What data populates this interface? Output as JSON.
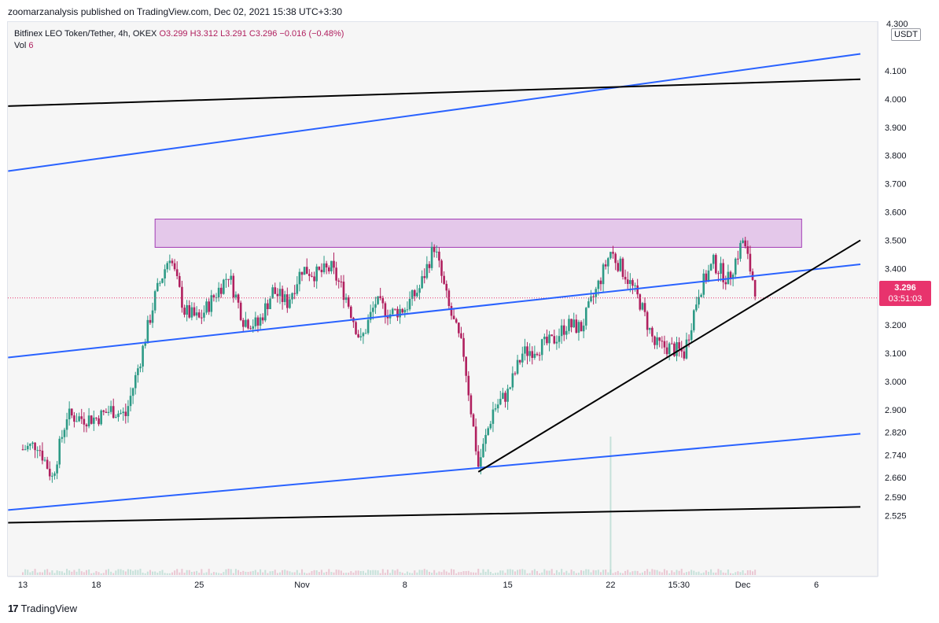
{
  "header": {
    "publisher_line": "zoomarzanalysis published on TradingView.com, Dec 02, 2021 15:38 UTC+3:30"
  },
  "legend": {
    "symbol": "Bitfinex LEO Token/Tether, 4h, OKEX",
    "open": "O3.299",
    "high": "H3.312",
    "low": "L3.291",
    "close": "C3.296",
    "change": "−0.016 (−0.48%)",
    "vol_label": "Vol",
    "vol_value": "6"
  },
  "price_axis": {
    "currency": "USDT",
    "top_label": "4.300"
  },
  "last_price": {
    "price": "3.296",
    "countdown": "03:51:03"
  },
  "footer": {
    "brand": "TradingView",
    "logo": "17"
  },
  "colors": {
    "up": "#2d9a86",
    "down": "#b0205f",
    "blue_line": "#2962ff",
    "black_line": "#000000",
    "zone_fill": "#e4c8ea",
    "zone_stroke": "#a23cb5",
    "price_tag": "#e8336d"
  },
  "chart_data": {
    "type": "candlestick",
    "title": "Bitfinex LEO Token/Tether, 4h, OKEX",
    "ylabel": "USDT",
    "y_ticks": [
      "4.100",
      "4.000",
      "3.900",
      "3.800",
      "3.700",
      "3.600",
      "3.500",
      "3.400",
      "3.300",
      "3.200",
      "3.100",
      "3.000",
      "2.900",
      "2.820",
      "2.740",
      "2.660",
      "2.590",
      "2.525"
    ],
    "x_ticks": [
      "13",
      "18",
      "25",
      "Nov",
      "8",
      "15",
      "22",
      "15:30",
      "Dec",
      "6"
    ],
    "x_dates": [
      "2021-10-13",
      "2021-10-18",
      "2021-10-25",
      "2021-11-01",
      "2021-11-08",
      "2021-11-15",
      "2021-11-22",
      "2021-11-26 15:30",
      "2021-12-01",
      "2021-12-06"
    ],
    "ylim": [
      2.49,
      4.31
    ],
    "close_path": [
      [
        "2021-10-13",
        2.76
      ],
      [
        "2021-10-14",
        2.78
      ],
      [
        "2021-10-15",
        2.66
      ],
      [
        "2021-10-16",
        2.88
      ],
      [
        "2021-10-17",
        2.87
      ],
      [
        "2021-10-18",
        2.87
      ],
      [
        "2021-10-19",
        2.9
      ],
      [
        "2021-10-20",
        2.88
      ],
      [
        "2021-10-21",
        3.08
      ],
      [
        "2021-10-22",
        3.3
      ],
      [
        "2021-10-23",
        3.45
      ],
      [
        "2021-10-24",
        3.25
      ],
      [
        "2021-10-25",
        3.22
      ],
      [
        "2021-10-26",
        3.3
      ],
      [
        "2021-10-27",
        3.38
      ],
      [
        "2021-10-28",
        3.22
      ],
      [
        "2021-10-29",
        3.2
      ],
      [
        "2021-10-30",
        3.32
      ],
      [
        "2021-10-31",
        3.28
      ],
      [
        "2021-11-01",
        3.4
      ],
      [
        "2021-11-02",
        3.38
      ],
      [
        "2021-11-03",
        3.4
      ],
      [
        "2021-11-04",
        3.3
      ],
      [
        "2021-11-05",
        3.14
      ],
      [
        "2021-11-06",
        3.28
      ],
      [
        "2021-11-07",
        3.24
      ],
      [
        "2021-11-08",
        3.26
      ],
      [
        "2021-11-09",
        3.33
      ],
      [
        "2021-11-10",
        3.48
      ],
      [
        "2021-11-11",
        3.26
      ],
      [
        "2021-11-12",
        3.1
      ],
      [
        "2021-11-13",
        2.7
      ],
      [
        "2021-11-14",
        2.9
      ],
      [
        "2021-11-15",
        2.96
      ],
      [
        "2021-11-16",
        3.1
      ],
      [
        "2021-11-17",
        3.12
      ],
      [
        "2021-11-18",
        3.14
      ],
      [
        "2021-11-19",
        3.2
      ],
      [
        "2021-11-20",
        3.19
      ],
      [
        "2021-11-21",
        3.32
      ],
      [
        "2021-11-22",
        3.46
      ],
      [
        "2021-11-23",
        3.38
      ],
      [
        "2021-11-24",
        3.28
      ],
      [
        "2021-11-25",
        3.13
      ],
      [
        "2021-11-26",
        3.12
      ],
      [
        "2021-11-27",
        3.1
      ],
      [
        "2021-11-28",
        3.32
      ],
      [
        "2021-11-29",
        3.42
      ],
      [
        "2021-11-30",
        3.36
      ],
      [
        "2021-12-01",
        3.5
      ],
      [
        "2021-12-02",
        3.296
      ]
    ],
    "resistance_zone": {
      "from": "2021-10-22",
      "to": "2021-12-05",
      "low": 3.475,
      "high": 3.575
    },
    "trendlines": [
      {
        "color": "blue",
        "from": [
          "2021-10-12",
          3.745
        ],
        "to": [
          "2021-12-09",
          4.16
        ]
      },
      {
        "color": "black",
        "from": [
          "2021-10-12",
          3.975
        ],
        "to": [
          "2021-12-09",
          4.07
        ]
      },
      {
        "color": "blue",
        "from": [
          "2021-10-12",
          3.085
        ],
        "to": [
          "2021-12-09",
          3.415
        ]
      },
      {
        "color": "blue",
        "from": [
          "2021-10-12",
          2.545
        ],
        "to": [
          "2021-12-09",
          2.815
        ]
      },
      {
        "color": "black",
        "from": [
          "2021-10-12",
          2.5
        ],
        "to": [
          "2021-12-09",
          2.556
        ]
      },
      {
        "color": "black",
        "from": [
          "2021-11-13",
          2.68
        ],
        "to": [
          "2021-12-09",
          3.5
        ]
      }
    ],
    "last_price": 3.296,
    "grid": false
  }
}
